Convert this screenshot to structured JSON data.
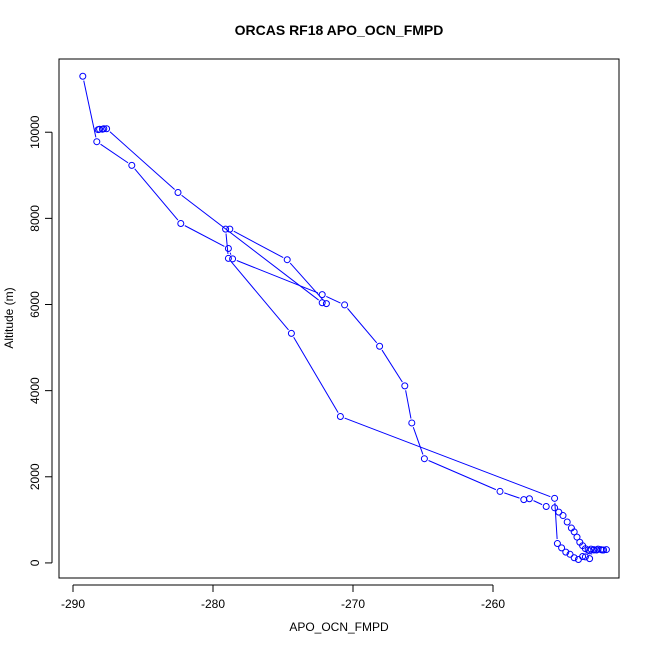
{
  "chart_data": {
    "type": "line",
    "title": "ORCAS RF18 APO_OCN_FMPD",
    "xlabel": "APO_OCN_FMPD",
    "ylabel": "Altitude (m)",
    "xlim": [
      -291,
      -251
    ],
    "ylim": [
      -350,
      11700
    ],
    "xticks": [
      -290,
      -280,
      -270,
      -260
    ],
    "yticks": [
      0,
      2000,
      4000,
      6000,
      8000,
      10000
    ],
    "marker": "open-circle",
    "grid": false,
    "legend": "none",
    "series_color": "#0000ff",
    "series": [
      {
        "x": [
          -289.3,
          -288.3,
          -285.8,
          -282.3,
          -278.9,
          -278.6,
          -272.2,
          -270.6,
          -268.1,
          -266.3,
          -265.8,
          -264.9,
          -259.5,
          -257.8,
          -257.4,
          -256.2,
          -255.6,
          -255.3,
          -255.0,
          -254.7,
          -254.4,
          -254.2,
          -254.0,
          -253.8,
          -253.6,
          -253.4,
          -253.2,
          -253.1,
          -253.0,
          -252.8,
          -252.6,
          -252.3,
          -252.1,
          -251.9,
          -252.2,
          -252.5,
          -252.8,
          -253.1,
          -253.4,
          -253.6,
          -253.9,
          -254.2,
          -254.5,
          -254.8,
          -255.1,
          -255.4,
          -255.6,
          -270.9,
          -274.4,
          -278.9,
          -279.1,
          -278.8,
          -274.7,
          -271.9,
          -272.2,
          -282.5,
          -287.6,
          -287.9,
          -288.2,
          -288.1,
          -287.8
        ],
        "y": [
          11300,
          9780,
          9230,
          7880,
          7300,
          7060,
          6230,
          5990,
          5030,
          4110,
          3250,
          2420,
          1660,
          1470,
          1490,
          1310,
          1280,
          1180,
          1100,
          950,
          810,
          720,
          600,
          480,
          400,
          330,
          300,
          280,
          320,
          310,
          300,
          310,
          300,
          310,
          300,
          320,
          300,
          100,
          140,
          150,
          80,
          120,
          200,
          250,
          350,
          450,
          1500,
          3400,
          5330,
          7070,
          7750,
          7750,
          7040,
          6020,
          6040,
          8600,
          10080,
          10070,
          10060,
          10070,
          10080
        ]
      }
    ]
  }
}
